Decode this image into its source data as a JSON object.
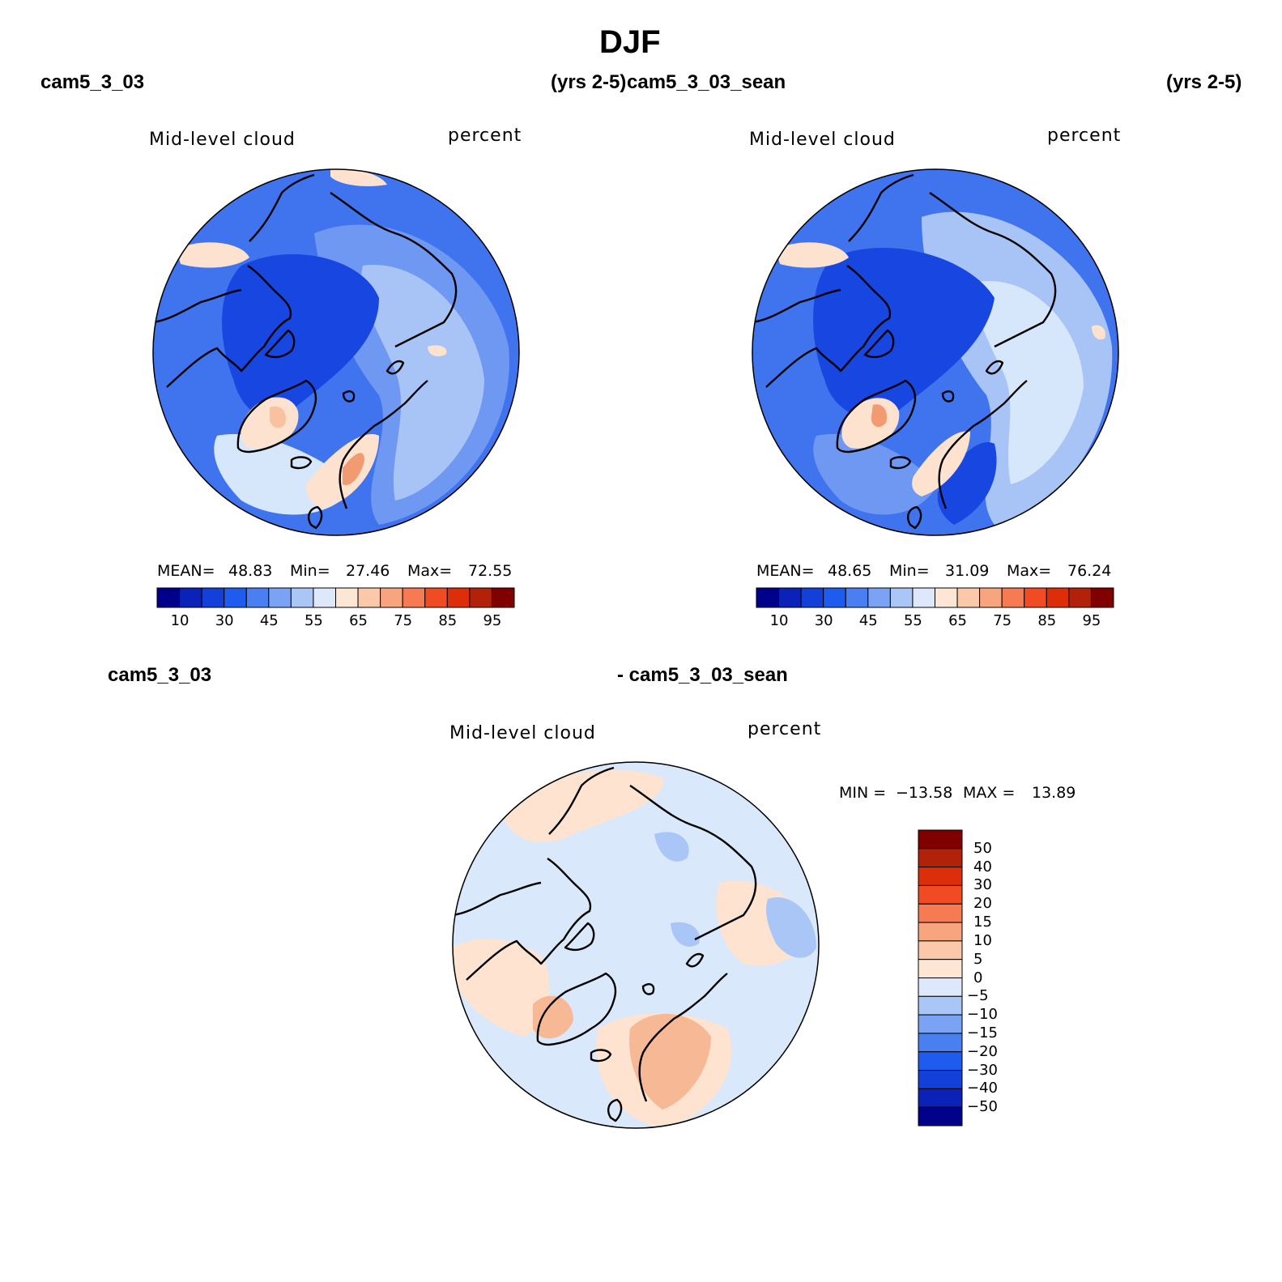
{
  "figure": {
    "title": "DJF",
    "panels": [
      {
        "case_name": "cam5_3_03",
        "years": "(yrs 2-5)",
        "variable": "Mid-level cloud",
        "units": "percent",
        "stats": {
          "mean_label": "MEAN=",
          "mean": "48.83",
          "min_label": "Min=",
          "min": "27.46",
          "max_label": "Max=",
          "max": "72.55"
        }
      },
      {
        "case_name": "cam5_3_03_sean",
        "years": "(yrs 2-5)",
        "variable": "Mid-level cloud",
        "units": "percent",
        "stats": {
          "mean_label": "MEAN=",
          "mean": "48.65",
          "min_label": "Min=",
          "min": "31.09",
          "max_label": "Max=",
          "max": "76.24"
        }
      },
      {
        "left_label": "cam5_3_03",
        "right_label": "- cam5_3_03_sean",
        "variable": "Mid-level cloud",
        "units": "percent",
        "stats": {
          "min_label": "MIN =",
          "min": "−13.58",
          "max_label": "MAX =",
          "max": "13.89"
        }
      }
    ],
    "colorbar_abs": {
      "labels": [
        "10",
        "30",
        "45",
        "55",
        "65",
        "75",
        "85",
        "95"
      ],
      "colors": [
        "#00008b",
        "#0a22b8",
        "#1240d8",
        "#1e5cf0",
        "#4a7ff2",
        "#7aa3f4",
        "#a9c6f6",
        "#dde9fa",
        "#fde6d4",
        "#fbc9aa",
        "#f8a47e",
        "#f67a52",
        "#f04b22",
        "#dc2e08",
        "#b22208",
        "#800000"
      ]
    },
    "colorbar_diff": {
      "labels": [
        "50",
        "40",
        "30",
        "20",
        "15",
        "10",
        "5",
        "0",
        "−5",
        "−10",
        "−15",
        "−20",
        "−30",
        "−40",
        "−50"
      ],
      "colors": [
        "#800000",
        "#b22208",
        "#dc2e08",
        "#f04b22",
        "#f67a52",
        "#f8a47e",
        "#fbc9aa",
        "#fde6d4",
        "#dde9fa",
        "#a9c6f6",
        "#7aa3f4",
        "#4a7ff2",
        "#1e5cf0",
        "#1240d8",
        "#0a22b8",
        "#00008b"
      ]
    },
    "map_colors": {
      "deep": "#1846e0",
      "mid": "#3f74ee",
      "light": "#6f98f2",
      "pale": "#a8c4f6",
      "verypale": "#d6e6fb",
      "peach": "#fde2cf",
      "salmon": "#f9c1a0",
      "orange": "#f29a72",
      "diff_bg": "#d9e8fb",
      "diff_peach": "#fde3d0",
      "diff_salmon": "#f7b995",
      "diff_blue": "#a9c6f6"
    }
  }
}
